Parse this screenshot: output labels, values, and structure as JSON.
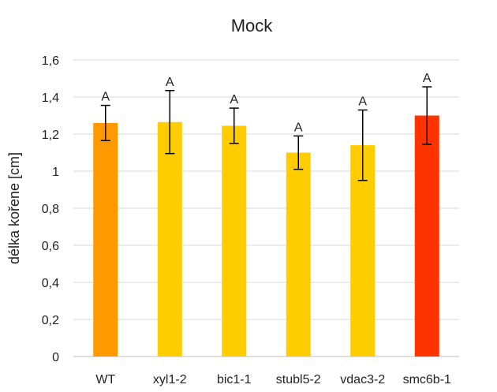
{
  "chart_data": {
    "type": "bar",
    "title": "Mock",
    "ylabel": "délka kořene [cm]",
    "xlabel": "",
    "ylim": [
      0,
      1.6
    ],
    "yticks": [
      "0",
      "0,2",
      "0,4",
      "0,6",
      "0,8",
      "1",
      "1,2",
      "1,4",
      "1,6"
    ],
    "ytick_values": [
      0,
      0.2,
      0.4,
      0.6,
      0.8,
      1.0,
      1.2,
      1.4,
      1.6
    ],
    "grid": true,
    "legend": "none",
    "categories": [
      "WT",
      "xyl1-2",
      "bic1-1",
      "stubl5-2",
      "vdac3-2",
      "smc6b-1"
    ],
    "values": [
      1.26,
      1.265,
      1.245,
      1.1,
      1.14,
      1.3
    ],
    "error_bars": [
      0.095,
      0.17,
      0.095,
      0.09,
      0.19,
      0.155
    ],
    "significance_labels": [
      "A",
      "A",
      "A",
      "A",
      "A",
      "A"
    ],
    "colors": [
      "#FF9900",
      "#FFCC00",
      "#FFCC00",
      "#FFCC00",
      "#FFCC00",
      "#FF3300"
    ]
  }
}
